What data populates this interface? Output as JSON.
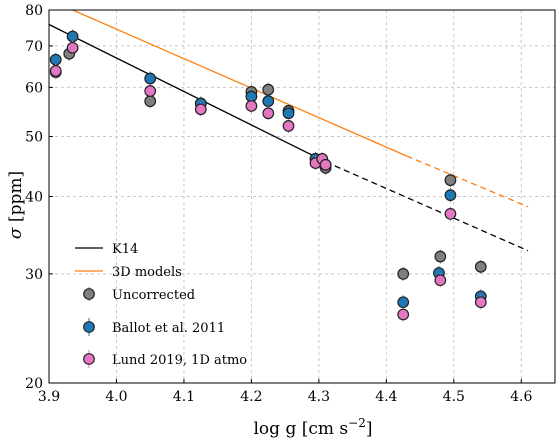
{
  "chart_data": {
    "type": "scatter",
    "title": "",
    "xlabel": "log g [cm s",
    "xlabel_exponent": "−2",
    "xlabel_close": "]",
    "ylabel_symbol": "σ",
    "ylabel_unit": " [ppm]",
    "xlim": [
      3.9,
      4.65
    ],
    "ylim": [
      20,
      80
    ],
    "y_scale": "log",
    "grid": true,
    "legend_position": "lower-left",
    "x_ticks": [
      3.9,
      4.0,
      4.1,
      4.2,
      4.3,
      4.4,
      4.5,
      4.6
    ],
    "x_tick_labels": [
      "3.9",
      "4.0",
      "4.1",
      "4.2",
      "4.3",
      "4.4",
      "4.5",
      "4.6"
    ],
    "y_ticks": [
      20,
      30,
      40,
      50,
      60,
      70,
      80
    ],
    "y_tick_labels": [
      "20",
      "30",
      "40",
      "50",
      "60",
      "70",
      "80"
    ],
    "lines": [
      {
        "name": "K14",
        "color": "#000000",
        "solid": [
          [
            3.9,
            75.8
          ],
          [
            4.31,
            45.5
          ]
        ],
        "dashed": [
          [
            4.31,
            45.5
          ],
          [
            4.61,
            32.7
          ]
        ]
      },
      {
        "name": "3D models",
        "color": "#ff7f0e",
        "solid": [
          [
            3.935,
            80.0
          ],
          [
            4.43,
            46.5
          ]
        ],
        "dashed": [
          [
            4.43,
            46.5
          ],
          [
            4.61,
            38.5
          ]
        ]
      }
    ],
    "series": [
      {
        "name": "Uncorrected",
        "color": "#7f7f7f",
        "points": [
          [
            3.91,
            63.5
          ],
          [
            3.93,
            68.0
          ],
          [
            4.05,
            57.0
          ],
          [
            4.125,
            56.5
          ],
          [
            4.2,
            59.0
          ],
          [
            4.225,
            59.5
          ],
          [
            4.255,
            55.0
          ],
          [
            4.295,
            46.0
          ],
          [
            4.305,
            45.5
          ],
          [
            4.31,
            44.5
          ],
          [
            4.425,
            30.0
          ],
          [
            4.48,
            32.0
          ],
          [
            4.495,
            42.5
          ],
          [
            4.54,
            30.8
          ]
        ]
      },
      {
        "name": "Ballot et al. 2011",
        "color": "#1f77b4",
        "points": [
          [
            3.91,
            66.5
          ],
          [
            3.935,
            72.5
          ],
          [
            4.05,
            62.0
          ],
          [
            4.125,
            56.5
          ],
          [
            4.2,
            58.0
          ],
          [
            4.225,
            57.0
          ],
          [
            4.255,
            54.5
          ],
          [
            4.295,
            46.0
          ],
          [
            4.305,
            45.5
          ],
          [
            4.31,
            45.0
          ],
          [
            4.425,
            27.0
          ],
          [
            4.478,
            30.1
          ],
          [
            4.495,
            40.2
          ],
          [
            4.54,
            27.6
          ]
        ]
      },
      {
        "name": "Lund 2019, 1D atmo",
        "color": "#e377c2",
        "points": [
          [
            3.91,
            63.8
          ],
          [
            3.935,
            69.5
          ],
          [
            4.05,
            59.2
          ],
          [
            4.125,
            55.3
          ],
          [
            4.2,
            56.0
          ],
          [
            4.225,
            54.5
          ],
          [
            4.255,
            52.0
          ],
          [
            4.295,
            45.3
          ],
          [
            4.305,
            46.0
          ],
          [
            4.31,
            45.0
          ],
          [
            4.425,
            25.8
          ],
          [
            4.48,
            29.3
          ],
          [
            4.495,
            37.5
          ],
          [
            4.54,
            27.0
          ]
        ]
      }
    ]
  }
}
